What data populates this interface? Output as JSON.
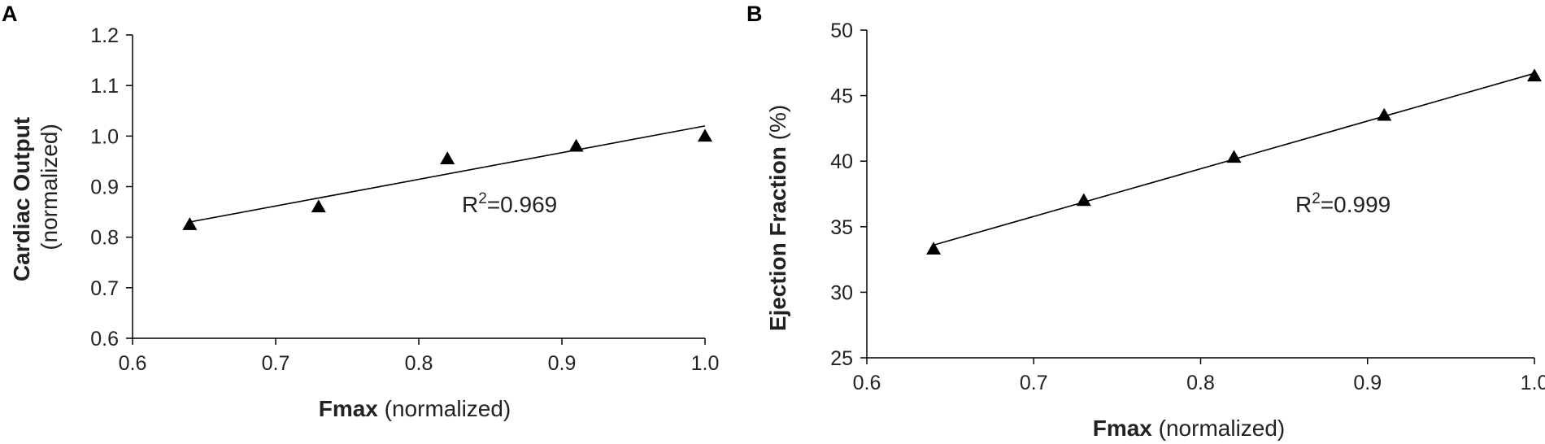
{
  "chart_data": [
    {
      "panel": "A",
      "type": "scatter",
      "trendline": "linear",
      "marker": "triangle",
      "x": [
        0.64,
        0.73,
        0.82,
        0.91,
        1.0
      ],
      "y": [
        0.825,
        0.86,
        0.955,
        0.98,
        1.0
      ],
      "fit_endpoints": {
        "x": [
          0.64,
          1.0
        ],
        "y": [
          0.83,
          1.02
        ]
      },
      "xlabel_bold": "Fmax",
      "xlabel_rest": " (normalized)",
      "ylabel_bold": "Cardiac Output",
      "ylabel_rest": "(normalized)",
      "annotation": {
        "prefix": "R",
        "sup": "2",
        "suffix": "=0.969"
      },
      "xlim": [
        0.6,
        1.0
      ],
      "ylim": [
        0.6,
        1.2
      ],
      "xticks": [
        0.6,
        0.7,
        0.8,
        0.9,
        1.0
      ],
      "xticklabels": [
        "0.6",
        "0.7",
        "0.8",
        "0.9",
        "1.0"
      ],
      "yticks": [
        0.6,
        0.7,
        0.8,
        0.9,
        1.0,
        1.1,
        1.2
      ],
      "yticklabels": [
        "0.6",
        "0.7",
        "0.8",
        "0.9",
        "1.0",
        "1.1",
        "1.2"
      ],
      "grid": false
    },
    {
      "panel": "B",
      "type": "scatter",
      "trendline": "linear",
      "marker": "triangle",
      "x": [
        0.64,
        0.73,
        0.82,
        0.91,
        1.0
      ],
      "y": [
        33.3,
        37.0,
        40.3,
        43.5,
        46.5
      ],
      "fit_endpoints": {
        "x": [
          0.64,
          1.0
        ],
        "y": [
          33.6,
          46.7
        ]
      },
      "xlabel_bold": "Fmax",
      "xlabel_rest": " (normalized)",
      "ylabel_bold": "Ejection Fraction",
      "ylabel_rest": " (%)",
      "annotation": {
        "prefix": "R",
        "sup": "2",
        "suffix": "=0.999"
      },
      "xlim": [
        0.6,
        1.0
      ],
      "ylim": [
        25,
        50
      ],
      "xticks": [
        0.6,
        0.7,
        0.8,
        0.9,
        1.0
      ],
      "xticklabels": [
        "0.6",
        "0.7",
        "0.8",
        "0.9",
        "1.0"
      ],
      "yticks": [
        25,
        30,
        35,
        40,
        45,
        50
      ],
      "yticklabels": [
        "25",
        "30",
        "35",
        "40",
        "45",
        "50"
      ],
      "grid": false
    }
  ],
  "colors": {
    "marker": "#000000",
    "line": "#000000",
    "axis": "#000000"
  }
}
